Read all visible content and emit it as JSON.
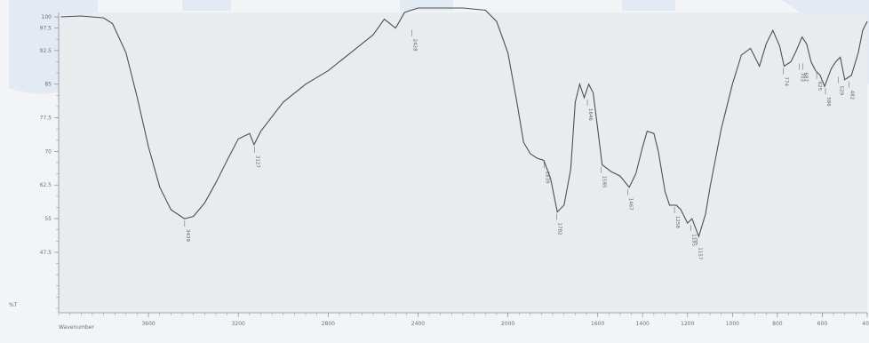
{
  "colors": {
    "background": "#f3f4f6",
    "plot_background": "#e9ebee",
    "trace": "#4b4f5a",
    "axis": "#8a8f99",
    "watermark": "#dbe6f4"
  },
  "chart_data": {
    "type": "line",
    "xlabel": "Wavenumber",
    "ylabel": "%T",
    "xlim": [
      4000,
      400
    ],
    "ylim": [
      34,
      101
    ],
    "x_ticks": [
      3600,
      3200,
      2800,
      2400,
      2000,
      1600,
      1400,
      1200,
      1000,
      800,
      600,
      400
    ],
    "y_ticks": [
      {
        "value": 100,
        "label": "100"
      },
      {
        "value": 97.5,
        "label": "97.5"
      },
      {
        "value": 92.5,
        "label": "92.5"
      },
      {
        "value": 85,
        "label": "85"
      },
      {
        "value": 77.5,
        "label": "77.5"
      },
      {
        "value": 70,
        "label": "70"
      },
      {
        "value": 62.5,
        "label": "62.5"
      },
      {
        "value": 55,
        "label": "55"
      },
      {
        "value": 47.5,
        "label": "47.5"
      }
    ],
    "series": [
      {
        "points": [
          [
            3990,
            100
          ],
          [
            3900,
            100.2
          ],
          [
            3800,
            99.8
          ],
          [
            3760,
            98.5
          ],
          [
            3700,
            92
          ],
          [
            3650,
            82
          ],
          [
            3600,
            71
          ],
          [
            3550,
            62
          ],
          [
            3500,
            57
          ],
          [
            3440,
            55
          ],
          [
            3400,
            55.5
          ],
          [
            3350,
            58.5
          ],
          [
            3300,
            63
          ],
          [
            3250,
            68
          ],
          [
            3200,
            72.8
          ],
          [
            3150,
            74
          ],
          [
            3130,
            71.5
          ],
          [
            3100,
            74.5
          ],
          [
            3000,
            81
          ],
          [
            2900,
            85
          ],
          [
            2800,
            88
          ],
          [
            2700,
            92
          ],
          [
            2600,
            96
          ],
          [
            2550,
            99.5
          ],
          [
            2500,
            97.5
          ],
          [
            2460,
            101
          ],
          [
            2400,
            102
          ],
          [
            2200,
            102
          ],
          [
            2100,
            101.5
          ],
          [
            2050,
            99
          ],
          [
            2000,
            92
          ],
          [
            1960,
            81
          ],
          [
            1930,
            72
          ],
          [
            1900,
            69.5
          ],
          [
            1870,
            68.5
          ],
          [
            1840,
            68
          ],
          [
            1810,
            64
          ],
          [
            1780,
            56.5
          ],
          [
            1750,
            58
          ],
          [
            1720,
            66
          ],
          [
            1700,
            81
          ],
          [
            1680,
            85
          ],
          [
            1660,
            82
          ],
          [
            1640,
            85
          ],
          [
            1620,
            83
          ],
          [
            1600,
            75
          ],
          [
            1580,
            67
          ],
          [
            1540,
            65.5
          ],
          [
            1500,
            64.5
          ],
          [
            1460,
            62
          ],
          [
            1430,
            65
          ],
          [
            1400,
            71
          ],
          [
            1380,
            74.5
          ],
          [
            1350,
            74
          ],
          [
            1330,
            70
          ],
          [
            1300,
            61
          ],
          [
            1280,
            58
          ],
          [
            1250,
            58
          ],
          [
            1230,
            57
          ],
          [
            1200,
            54
          ],
          [
            1180,
            55
          ],
          [
            1150,
            51
          ],
          [
            1120,
            56
          ],
          [
            1100,
            62
          ],
          [
            1050,
            75
          ],
          [
            1000,
            85
          ],
          [
            960,
            91.5
          ],
          [
            920,
            93
          ],
          [
            880,
            89
          ],
          [
            850,
            94
          ],
          [
            820,
            97
          ],
          [
            790,
            93.5
          ],
          [
            770,
            89
          ],
          [
            740,
            90
          ],
          [
            720,
            92
          ],
          [
            690,
            95.5
          ],
          [
            670,
            94
          ],
          [
            650,
            90
          ],
          [
            630,
            88
          ],
          [
            610,
            87
          ],
          [
            590,
            84.5
          ],
          [
            560,
            88.5
          ],
          [
            540,
            90
          ],
          [
            520,
            91
          ],
          [
            500,
            86
          ],
          [
            470,
            87
          ],
          [
            440,
            92
          ],
          [
            420,
            97
          ],
          [
            400,
            99
          ]
        ]
      }
    ],
    "peak_labels": [
      {
        "x": 3439,
        "y": 55,
        "label": "3439"
      },
      {
        "x": 3127,
        "y": 71.5,
        "label": "3127"
      },
      {
        "x": 2428,
        "y": 97.5,
        "label": "2428"
      },
      {
        "x": 1839,
        "y": 68,
        "label": "1839"
      },
      {
        "x": 1782,
        "y": 56.5,
        "label": "1782"
      },
      {
        "x": 1646,
        "y": 82,
        "label": "1646"
      },
      {
        "x": 1585,
        "y": 67,
        "label": "1585"
      },
      {
        "x": 1467,
        "y": 62,
        "label": "1467"
      },
      {
        "x": 1258,
        "y": 58,
        "label": "1258"
      },
      {
        "x": 1185,
        "y": 54,
        "label": "1185"
      },
      {
        "x": 1157,
        "y": 51,
        "label": "1157"
      },
      {
        "x": 774,
        "y": 89,
        "label": "774"
      },
      {
        "x": 703,
        "y": 90,
        "label": "703"
      },
      {
        "x": 687,
        "y": 90,
        "label": "687"
      },
      {
        "x": 625,
        "y": 88,
        "label": "625"
      },
      {
        "x": 586,
        "y": 84.5,
        "label": "586"
      },
      {
        "x": 529,
        "y": 87,
        "label": "529"
      },
      {
        "x": 482,
        "y": 86,
        "label": "482"
      }
    ]
  }
}
